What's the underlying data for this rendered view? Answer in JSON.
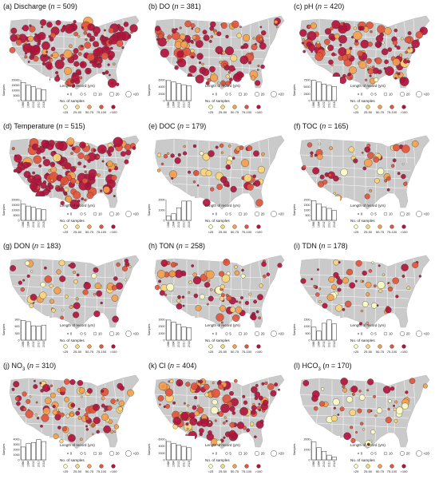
{
  "legend": {
    "length_title": "Length of record (yrs)",
    "length_ticks": [
      "0",
      "5",
      "10",
      "20",
      ">20"
    ],
    "samples_title": "No. of samples",
    "samples_ticks": [
      "<25",
      "25-50",
      "50-75",
      "75-100",
      ">100"
    ],
    "sample_colors": [
      "#fdfdc4",
      "#fbd679",
      "#f49f4d",
      "#e2543b",
      "#b3143c"
    ],
    "hist_ylabel": "Samples",
    "hist_xticks": [
      "1986",
      "1994",
      "2002",
      "2010",
      "2018"
    ]
  },
  "colors": {
    "land": "#cacaca",
    "state_lines": "#ffffff",
    "circle_edge": "#333333"
  },
  "panels": [
    {
      "tag": "(a)",
      "name": "Discharge",
      "n": "n = 509",
      "yticks": [
        "20000",
        "15000",
        "10000",
        "5000",
        "0"
      ],
      "ymax": 20000,
      "hist": [
        17500,
        14800,
        13500,
        11500,
        10500
      ],
      "density": 509,
      "tone": 0.95
    },
    {
      "tag": "(b)",
      "name": "DO",
      "n": "n = 381",
      "yticks": [
        "6000",
        "4000",
        "2000",
        "0"
      ],
      "ymax": 6000,
      "hist": [
        5800,
        5400,
        4900,
        4600,
        4300
      ],
      "density": 381,
      "tone": 0.8
    },
    {
      "tag": "(c)",
      "name": "pH",
      "n": "n = 420",
      "yticks": [
        "7500",
        "5000",
        "2500",
        "0"
      ],
      "ymax": 7500,
      "hist": [
        7300,
        6700,
        6000,
        5500,
        5100
      ],
      "density": 420,
      "tone": 0.82
    },
    {
      "tag": "(d)",
      "name": "Temperature",
      "n": "n = 515",
      "yticks": [
        "20000",
        "15000",
        "10000",
        "5000",
        "0"
      ],
      "ymax": 20000,
      "hist": [
        15500,
        13800,
        12500,
        11200,
        10200
      ],
      "density": 515,
      "tone": 0.9
    },
    {
      "tag": "(e)",
      "name": "DOC",
      "n": "n = 179",
      "yticks": [
        "2000",
        "1000",
        "0"
      ],
      "ymax": 2800,
      "hist": [
        600,
        900,
        1700,
        2600,
        2600
      ],
      "density": 179,
      "tone": 0.45
    },
    {
      "tag": "(f)",
      "name": "TOC",
      "n": "n = 165",
      "yticks": [
        "2000",
        "1500",
        "1000",
        "500",
        "0"
      ],
      "ymax": 2000,
      "hist": [
        1900,
        1600,
        1300,
        1150,
        950
      ],
      "density": 165,
      "tone": 0.45
    },
    {
      "tag": "(g)",
      "name": "DON",
      "n": "n = 183",
      "yticks": [
        "900",
        "600",
        "300",
        "0"
      ],
      "ymax": 900,
      "hist": [
        850,
        800,
        620,
        600,
        650
      ],
      "density": 183,
      "tone": 0.4
    },
    {
      "tag": "(h)",
      "name": "TON",
      "n": "n = 258",
      "yticks": [
        "3000",
        "2000",
        "1000",
        "0"
      ],
      "ymax": 3000,
      "hist": [
        2900,
        2600,
        2300,
        1900,
        1800
      ],
      "density": 258,
      "tone": 0.55
    },
    {
      "tag": "(i)",
      "name": "TDN",
      "n": "n = 178",
      "yticks": [
        "1500",
        "1000",
        "500",
        "0"
      ],
      "ymax": 1600,
      "hist": [
        1000,
        700,
        1300,
        1550,
        1250
      ],
      "density": 178,
      "tone": 0.35
    },
    {
      "tag": "(j)",
      "name": "NO",
      "sub": "3",
      "n": "n = 310",
      "yticks": [
        "4000",
        "3000",
        "2000",
        "1000",
        "0"
      ],
      "ymax": 4200,
      "hist": [
        2600,
        3300,
        3500,
        4100,
        3700
      ],
      "density": 310,
      "tone": 0.55
    },
    {
      "tag": "(k)",
      "name": "Cl",
      "n": "n = 404",
      "yticks": [
        "6000",
        "4000",
        "2000",
        "0"
      ],
      "ymax": 6000,
      "hist": [
        5300,
        4700,
        4300,
        3900,
        3500
      ],
      "density": 404,
      "tone": 0.75
    },
    {
      "tag": "(l)",
      "name": "HCO",
      "sub": "3",
      "n": "n = 170",
      "yticks": [
        "2000",
        "1000",
        "0"
      ],
      "ymax": 2200,
      "hist": [
        1900,
        1300,
        900,
        500,
        300
      ],
      "density": 170,
      "tone": 0.3
    }
  ]
}
